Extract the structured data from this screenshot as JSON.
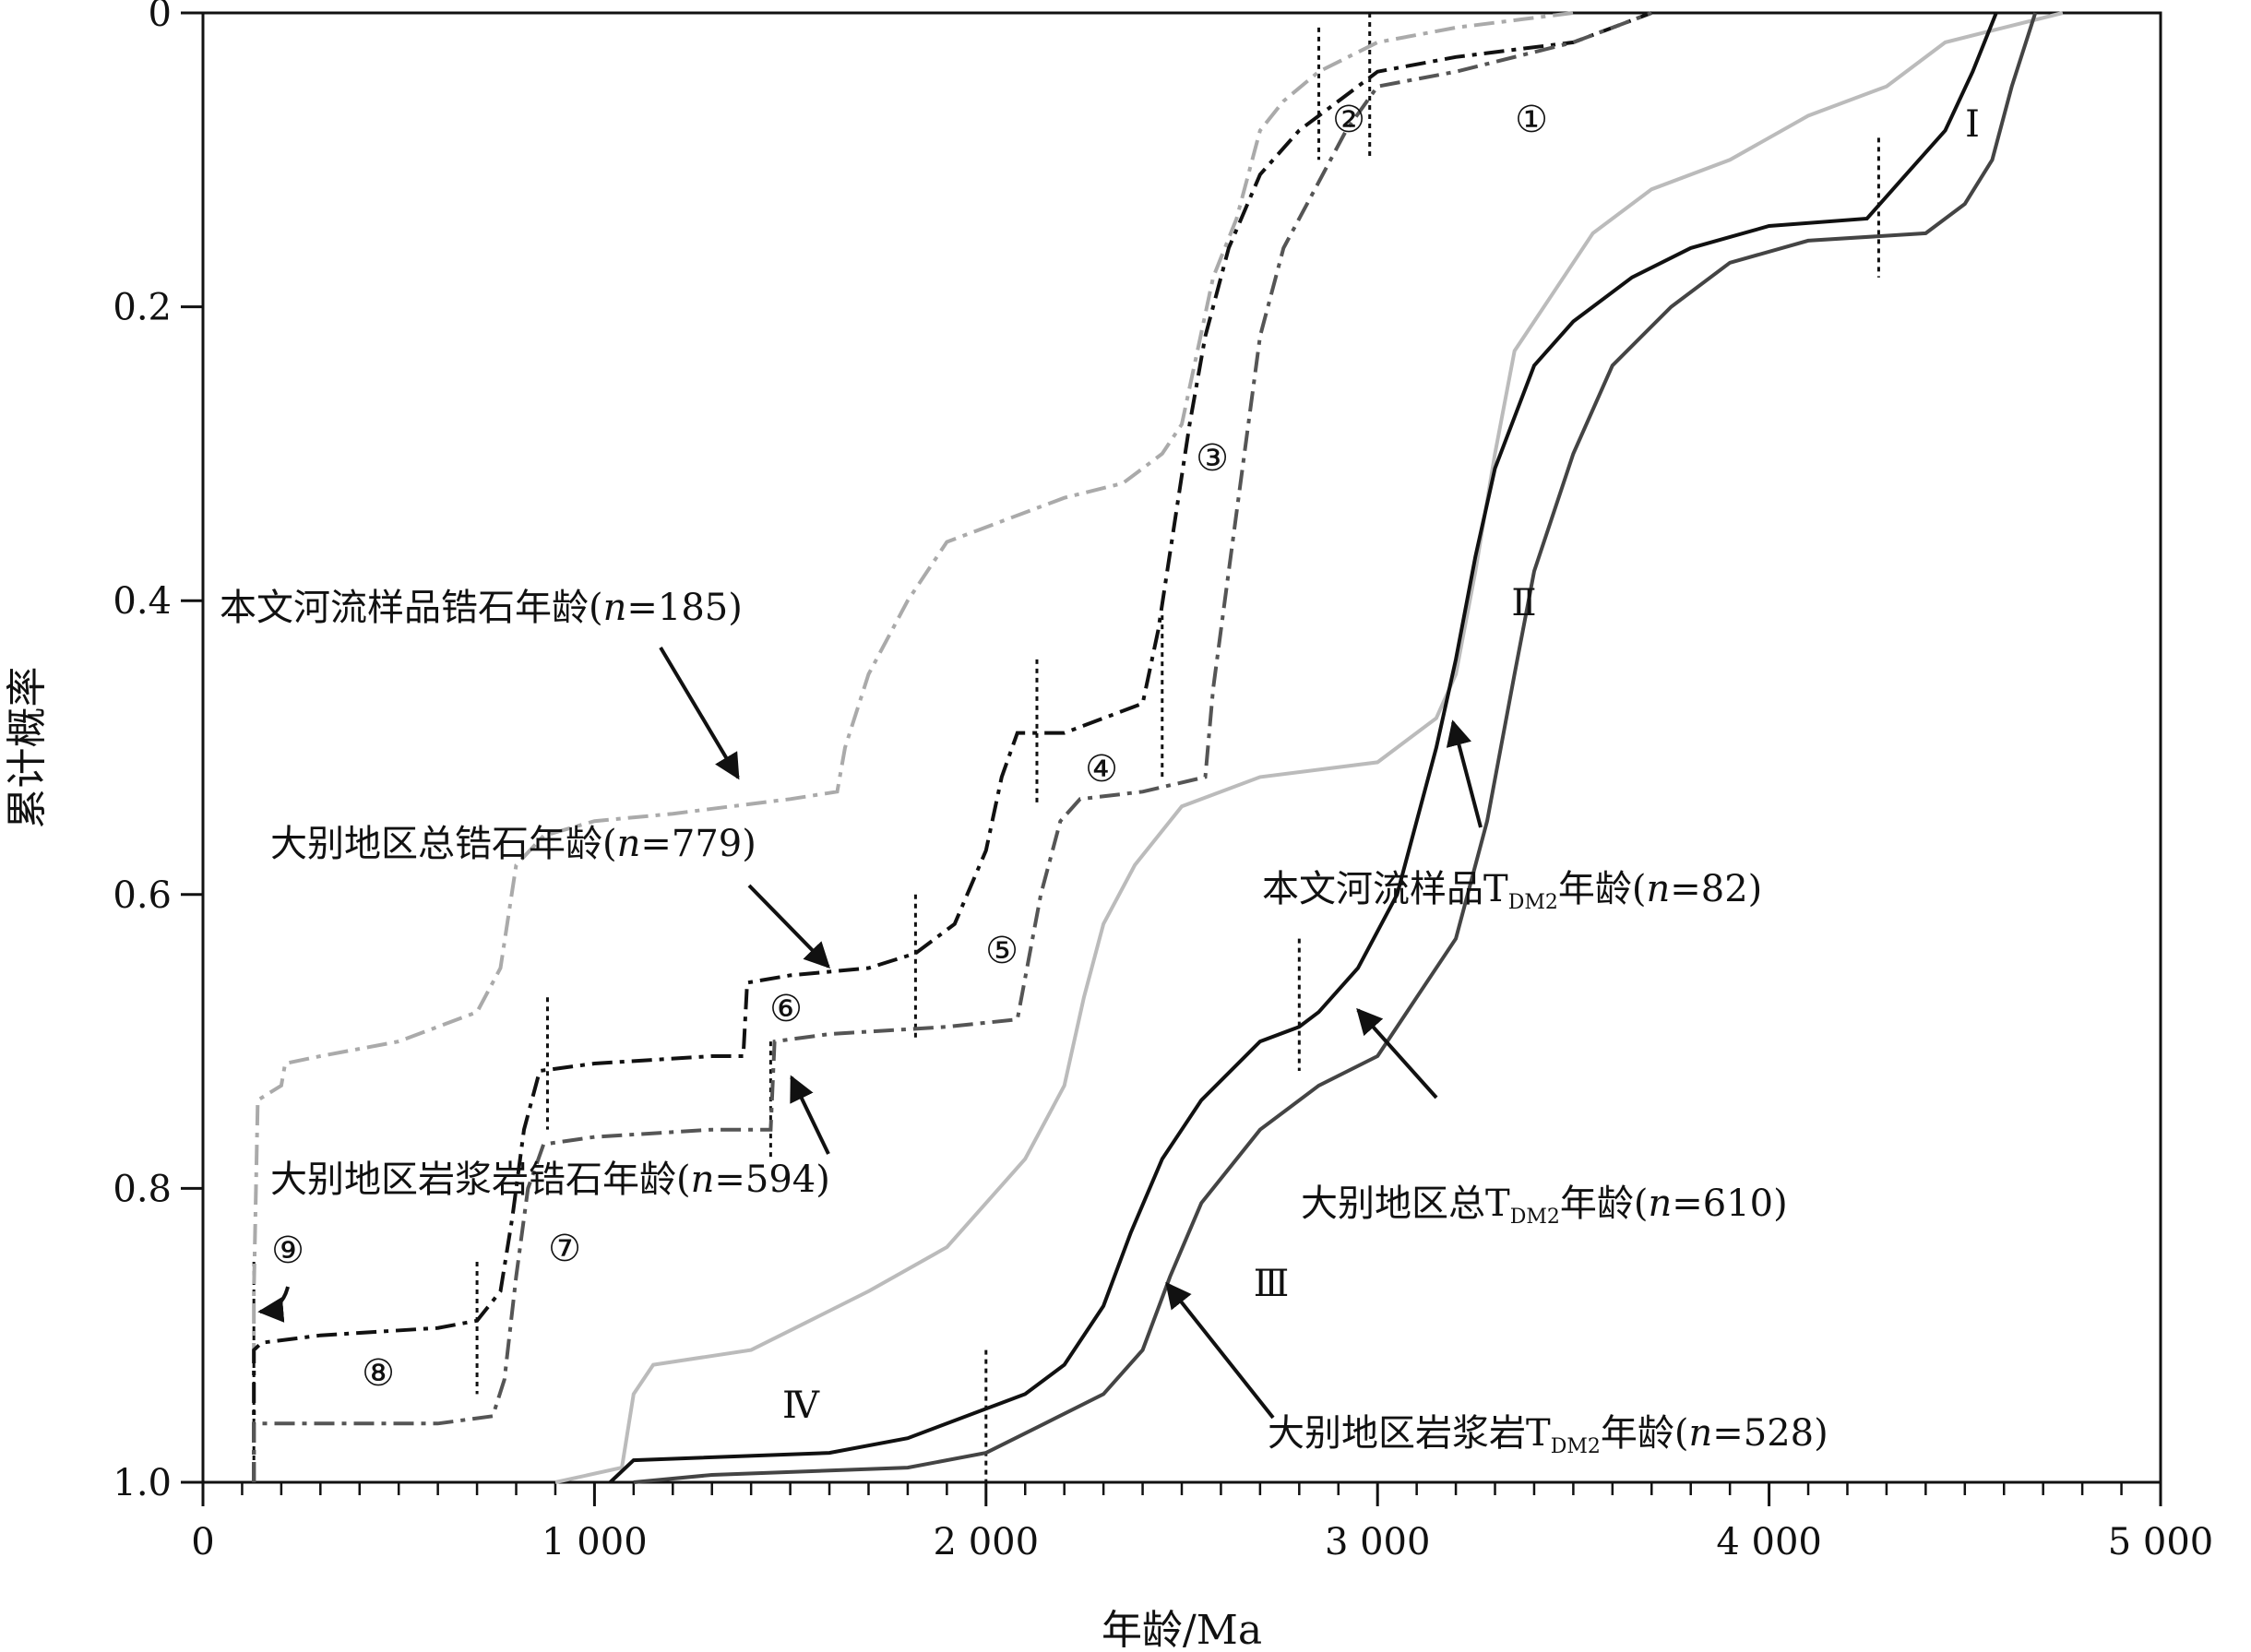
{
  "chart_data": {
    "type": "line",
    "xlabel": "年龄/Ma",
    "ylabel": "累计概率",
    "xlim": [
      0,
      5000
    ],
    "ylim": [
      0,
      1.0
    ],
    "y_inverted": true,
    "x_ticks": [
      {
        "value": 0,
        "label": "0"
      },
      {
        "value": 1000,
        "label": "1 000"
      },
      {
        "value": 2000,
        "label": "2 000"
      },
      {
        "value": 3000,
        "label": "3 000"
      },
      {
        "value": 4000,
        "label": "4 000"
      },
      {
        "value": 5000,
        "label": "5 000"
      }
    ],
    "y_ticks": [
      {
        "value": 0,
        "label": "0"
      },
      {
        "value": 0.2,
        "label": "0.2"
      },
      {
        "value": 0.4,
        "label": "0.4"
      },
      {
        "value": 0.6,
        "label": "0.6"
      },
      {
        "value": 0.8,
        "label": "0.8"
      },
      {
        "value": 1.0,
        "label": "1.0"
      }
    ],
    "grid": false,
    "series": [
      {
        "name": "本文河流样品锆石年龄(n=185)",
        "color": "#aaaaaa",
        "dash": "dashdot",
        "points": [
          [
            130,
            1.0
          ],
          [
            130,
            0.87
          ],
          [
            140,
            0.74
          ],
          [
            200,
            0.73
          ],
          [
            210,
            0.715
          ],
          [
            300,
            0.71
          ],
          [
            500,
            0.7
          ],
          [
            700,
            0.68
          ],
          [
            760,
            0.65
          ],
          [
            800,
            0.58
          ],
          [
            870,
            0.56
          ],
          [
            1000,
            0.55
          ],
          [
            1200,
            0.545
          ],
          [
            1350,
            0.54
          ],
          [
            1500,
            0.535
          ],
          [
            1620,
            0.53
          ],
          [
            1640,
            0.5
          ],
          [
            1700,
            0.45
          ],
          [
            1800,
            0.4
          ],
          [
            1900,
            0.36
          ],
          [
            2100,
            0.34
          ],
          [
            2200,
            0.33
          ],
          [
            2350,
            0.32
          ],
          [
            2450,
            0.3
          ],
          [
            2500,
            0.28
          ],
          [
            2540,
            0.23
          ],
          [
            2580,
            0.18
          ],
          [
            2640,
            0.14
          ],
          [
            2700,
            0.08
          ],
          [
            2760,
            0.06
          ],
          [
            2850,
            0.04
          ],
          [
            3000,
            0.02
          ],
          [
            3200,
            0.01
          ],
          [
            3500,
            0.0
          ]
        ]
      },
      {
        "name": "大别地区总锆石年龄(n=779)",
        "color": "#111111",
        "dash": "dashdot",
        "points": [
          [
            130,
            1.0
          ],
          [
            130,
            0.91
          ],
          [
            150,
            0.905
          ],
          [
            300,
            0.9
          ],
          [
            600,
            0.895
          ],
          [
            700,
            0.89
          ],
          [
            760,
            0.87
          ],
          [
            790,
            0.82
          ],
          [
            820,
            0.76
          ],
          [
            860,
            0.72
          ],
          [
            1000,
            0.715
          ],
          [
            1300,
            0.71
          ],
          [
            1380,
            0.71
          ],
          [
            1390,
            0.66
          ],
          [
            1500,
            0.655
          ],
          [
            1700,
            0.65
          ],
          [
            1820,
            0.64
          ],
          [
            1920,
            0.62
          ],
          [
            2000,
            0.57
          ],
          [
            2040,
            0.52
          ],
          [
            2080,
            0.49
          ],
          [
            2200,
            0.49
          ],
          [
            2300,
            0.48
          ],
          [
            2400,
            0.47
          ],
          [
            2440,
            0.42
          ],
          [
            2480,
            0.35
          ],
          [
            2520,
            0.28
          ],
          [
            2560,
            0.22
          ],
          [
            2620,
            0.16
          ],
          [
            2700,
            0.11
          ],
          [
            2800,
            0.08
          ],
          [
            2900,
            0.06
          ],
          [
            3000,
            0.04
          ],
          [
            3200,
            0.03
          ],
          [
            3500,
            0.02
          ],
          [
            3700,
            0.0
          ]
        ]
      },
      {
        "name": "大别地区岩浆岩锆石年龄(n=594)",
        "color": "#555555",
        "dash": "dashdot",
        "points": [
          [
            130,
            1.0
          ],
          [
            130,
            0.96
          ],
          [
            300,
            0.96
          ],
          [
            600,
            0.96
          ],
          [
            740,
            0.955
          ],
          [
            770,
            0.93
          ],
          [
            800,
            0.86
          ],
          [
            830,
            0.8
          ],
          [
            870,
            0.77
          ],
          [
            1000,
            0.765
          ],
          [
            1300,
            0.76
          ],
          [
            1450,
            0.76
          ],
          [
            1460,
            0.7
          ],
          [
            1600,
            0.695
          ],
          [
            1900,
            0.69
          ],
          [
            2080,
            0.685
          ],
          [
            2140,
            0.6
          ],
          [
            2190,
            0.55
          ],
          [
            2240,
            0.535
          ],
          [
            2400,
            0.53
          ],
          [
            2560,
            0.52
          ],
          [
            2580,
            0.46
          ],
          [
            2620,
            0.38
          ],
          [
            2660,
            0.3
          ],
          [
            2700,
            0.22
          ],
          [
            2760,
            0.16
          ],
          [
            2840,
            0.12
          ],
          [
            2920,
            0.08
          ],
          [
            3000,
            0.05
          ],
          [
            3200,
            0.04
          ],
          [
            3500,
            0.02
          ],
          [
            3700,
            0.0
          ]
        ]
      },
      {
        "name": "本文河流样品TDM2年龄(n=82)",
        "color": "#bbbbbb",
        "dash": "solid",
        "points": [
          [
            900,
            1.0
          ],
          [
            1070,
            0.99
          ],
          [
            1100,
            0.94
          ],
          [
            1150,
            0.92
          ],
          [
            1400,
            0.91
          ],
          [
            1550,
            0.89
          ],
          [
            1700,
            0.87
          ],
          [
            1900,
            0.84
          ],
          [
            2000,
            0.81
          ],
          [
            2100,
            0.78
          ],
          [
            2200,
            0.73
          ],
          [
            2250,
            0.67
          ],
          [
            2300,
            0.62
          ],
          [
            2380,
            0.58
          ],
          [
            2500,
            0.54
          ],
          [
            2700,
            0.52
          ],
          [
            3000,
            0.51
          ],
          [
            3150,
            0.48
          ],
          [
            3200,
            0.45
          ],
          [
            3250,
            0.38
          ],
          [
            3300,
            0.3
          ],
          [
            3350,
            0.23
          ],
          [
            3450,
            0.19
          ],
          [
            3550,
            0.15
          ],
          [
            3700,
            0.12
          ],
          [
            3900,
            0.1
          ],
          [
            4100,
            0.07
          ],
          [
            4300,
            0.05
          ],
          [
            4450,
            0.02
          ],
          [
            4600,
            0.01
          ],
          [
            4750,
            0.0
          ]
        ]
      },
      {
        "name": "大别地区总TDM2年龄(n=610)",
        "color": "#111111",
        "dash": "solid",
        "points": [
          [
            1040,
            1.0
          ],
          [
            1100,
            0.985
          ],
          [
            1600,
            0.98
          ],
          [
            1800,
            0.97
          ],
          [
            2000,
            0.95
          ],
          [
            2100,
            0.94
          ],
          [
            2200,
            0.92
          ],
          [
            2300,
            0.88
          ],
          [
            2370,
            0.83
          ],
          [
            2450,
            0.78
          ],
          [
            2550,
            0.74
          ],
          [
            2700,
            0.7
          ],
          [
            2800,
            0.69
          ],
          [
            2850,
            0.68
          ],
          [
            2950,
            0.65
          ],
          [
            3050,
            0.6
          ],
          [
            3150,
            0.5
          ],
          [
            3200,
            0.44
          ],
          [
            3250,
            0.37
          ],
          [
            3300,
            0.31
          ],
          [
            3400,
            0.24
          ],
          [
            3500,
            0.21
          ],
          [
            3650,
            0.18
          ],
          [
            3800,
            0.16
          ],
          [
            4000,
            0.145
          ],
          [
            4250,
            0.14
          ],
          [
            4350,
            0.11
          ],
          [
            4450,
            0.08
          ],
          [
            4520,
            0.04
          ],
          [
            4580,
            0.0
          ]
        ]
      },
      {
        "name": "大别地区岩浆岩TDM2年龄(n=528)",
        "color": "#444444",
        "dash": "solid",
        "points": [
          [
            1100,
            1.0
          ],
          [
            1300,
            0.995
          ],
          [
            1800,
            0.99
          ],
          [
            2000,
            0.98
          ],
          [
            2150,
            0.96
          ],
          [
            2300,
            0.94
          ],
          [
            2400,
            0.91
          ],
          [
            2470,
            0.86
          ],
          [
            2550,
            0.81
          ],
          [
            2700,
            0.76
          ],
          [
            2850,
            0.73
          ],
          [
            3000,
            0.71
          ],
          [
            3100,
            0.67
          ],
          [
            3200,
            0.63
          ],
          [
            3280,
            0.55
          ],
          [
            3350,
            0.45
          ],
          [
            3400,
            0.38
          ],
          [
            3500,
            0.3
          ],
          [
            3600,
            0.24
          ],
          [
            3750,
            0.2
          ],
          [
            3900,
            0.17
          ],
          [
            4100,
            0.155
          ],
          [
            4400,
            0.15
          ],
          [
            4500,
            0.13
          ],
          [
            4570,
            0.1
          ],
          [
            4620,
            0.05
          ],
          [
            4680,
            0.0
          ]
        ]
      }
    ],
    "annotations": {
      "labels": [
        {
          "text": "本文河流样品锆石年龄(",
          "italic": "n",
          "tail": "=185)"
        },
        {
          "text": "大别地区总锆石年龄(",
          "italic": "n",
          "tail": "=779)"
        },
        {
          "text": "大别地区岩浆岩锆石年龄(",
          "italic": "n",
          "tail": "=594)"
        },
        {
          "text": "本文河流样品T",
          "sub": "DM2",
          "tail2": "年龄(",
          "italic": "n",
          "tail": "=82)"
        },
        {
          "text": "大别地区总T",
          "sub": "DM2",
          "tail2": "年龄(",
          "italic": "n",
          "tail": "=610)"
        },
        {
          "text": "大别地区岩浆岩T",
          "sub": "DM2",
          "tail2": "年龄(",
          "italic": "n",
          "tail": "=528)"
        }
      ],
      "circled": [
        "①",
        "②",
        "③",
        "④",
        "⑤",
        "⑥",
        "⑦",
        "⑧",
        "⑨"
      ],
      "roman": [
        "Ⅰ",
        "Ⅱ",
        "Ⅲ",
        "Ⅳ"
      ],
      "boundaries_ma": [
        130,
        700,
        880,
        1450,
        1820,
        2130,
        2450,
        2850,
        2980,
        2000,
        2800,
        4280
      ]
    }
  }
}
